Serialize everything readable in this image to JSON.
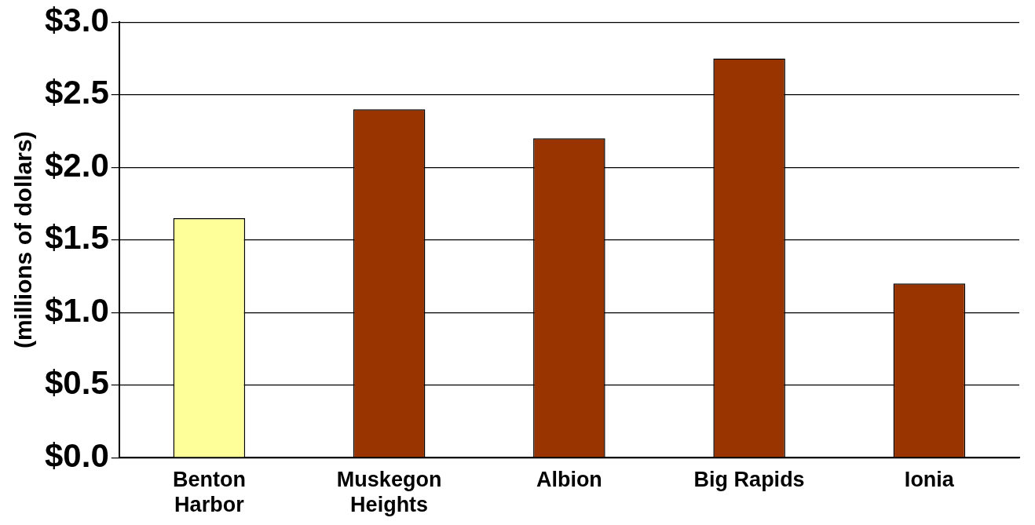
{
  "chart_data": {
    "type": "bar",
    "ylabel": "(millions of dollars)",
    "categories": [
      "Benton\nHarbor",
      "Muskegon\nHeights",
      "Albion",
      "Big Rapids",
      "Ionia"
    ],
    "values": [
      1.65,
      2.4,
      2.2,
      2.75,
      1.2
    ],
    "colors": [
      "#ffff99",
      "#993300",
      "#993300",
      "#993300",
      "#993300"
    ],
    "ylim": [
      0,
      3
    ],
    "yticks": [
      {
        "value": 0,
        "label": "$0.0"
      },
      {
        "value": 0.5,
        "label": "$0.5"
      },
      {
        "value": 1,
        "label": "$1.0"
      },
      {
        "value": 1.5,
        "label": "$1.5"
      },
      {
        "value": 2,
        "label": "$2.0"
      },
      {
        "value": 2.5,
        "label": "$2.5"
      },
      {
        "value": 3,
        "label": "$3.0"
      }
    ],
    "grid": "y"
  }
}
